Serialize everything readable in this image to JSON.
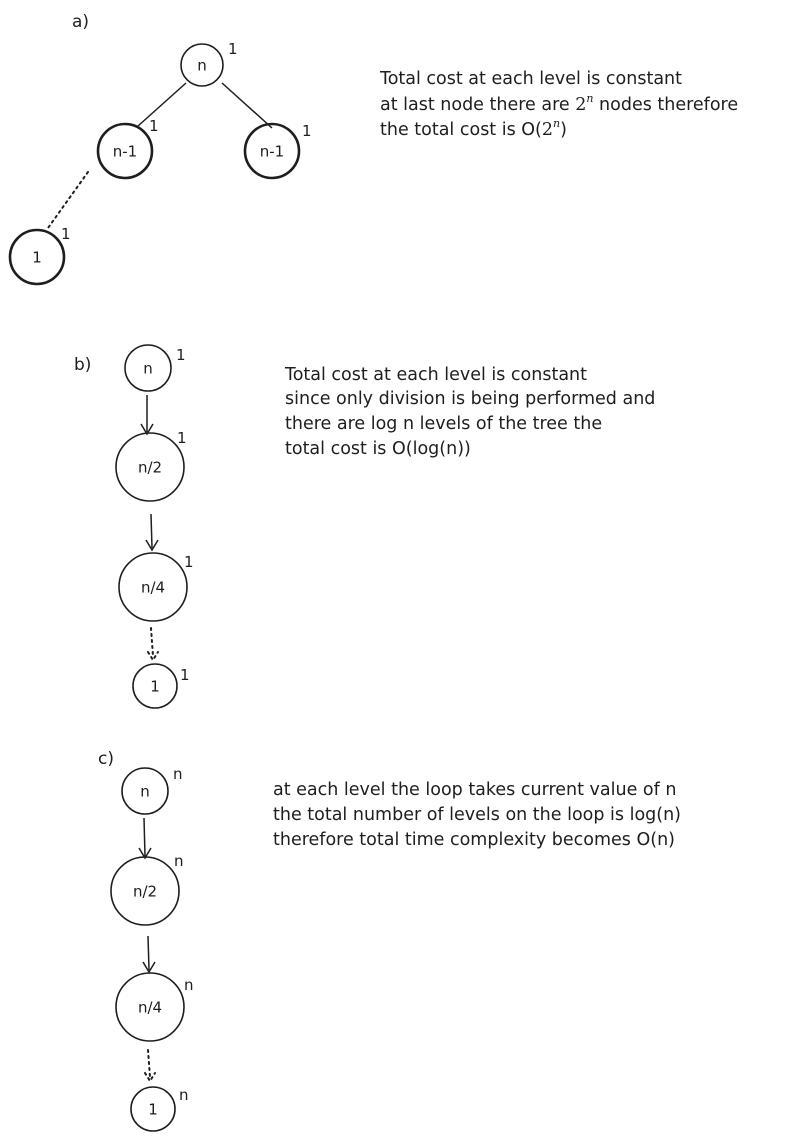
{
  "parts": [
    {
      "label": "a)",
      "nodes": [
        "n",
        "n-1",
        "n-1",
        "1"
      ],
      "costs": [
        "1",
        "1",
        "1",
        "1"
      ],
      "note": {
        "line1": "Total cost at each level is constant",
        "line2_pre": "at last node there are ",
        "line2_math_base": "2",
        "line2_math_exp": "n",
        "line2_post": " nodes therefore",
        "line3_pre": "the total cost is O(",
        "line3_math_base": "2",
        "line3_math_exp": "n",
        "line3_post": ")"
      }
    },
    {
      "label": "b)",
      "nodes": [
        "n",
        "n/2",
        "n/4",
        "1"
      ],
      "costs": [
        "1",
        "1",
        "1",
        "1"
      ],
      "note": [
        "Total cost at each level is constant",
        "since only division is being performed and",
        "there are log n levels of the tree the",
        "total cost is O(log(n))"
      ]
    },
    {
      "label": "c)",
      "nodes": [
        "n",
        "n/2",
        "n/4",
        "1"
      ],
      "costs": [
        "n",
        "n",
        "n",
        "n"
      ],
      "note": [
        "at each level the loop takes current value of n",
        "the total number of levels on the loop is log(n)",
        "therefore total time complexity becomes O(n)"
      ]
    }
  ]
}
